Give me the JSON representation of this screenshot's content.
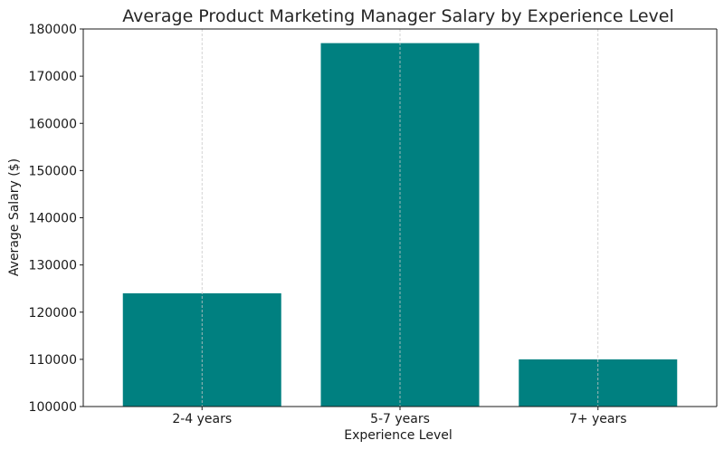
{
  "chart_data": {
    "type": "bar",
    "title": "Average Product Marketing Manager Salary by Experience Level",
    "xlabel": "Experience Level",
    "ylabel": "Average Salary ($)",
    "categories": [
      "2-4 years",
      "5-7 years",
      "7+ years"
    ],
    "values": [
      124000,
      177000,
      110000
    ],
    "ylim": [
      100000,
      180000
    ],
    "yticks": [
      100000,
      110000,
      120000,
      130000,
      140000,
      150000,
      160000,
      170000,
      180000
    ],
    "grid": "vertical dashed at category centers",
    "colors": {
      "bar": "#008080"
    }
  }
}
